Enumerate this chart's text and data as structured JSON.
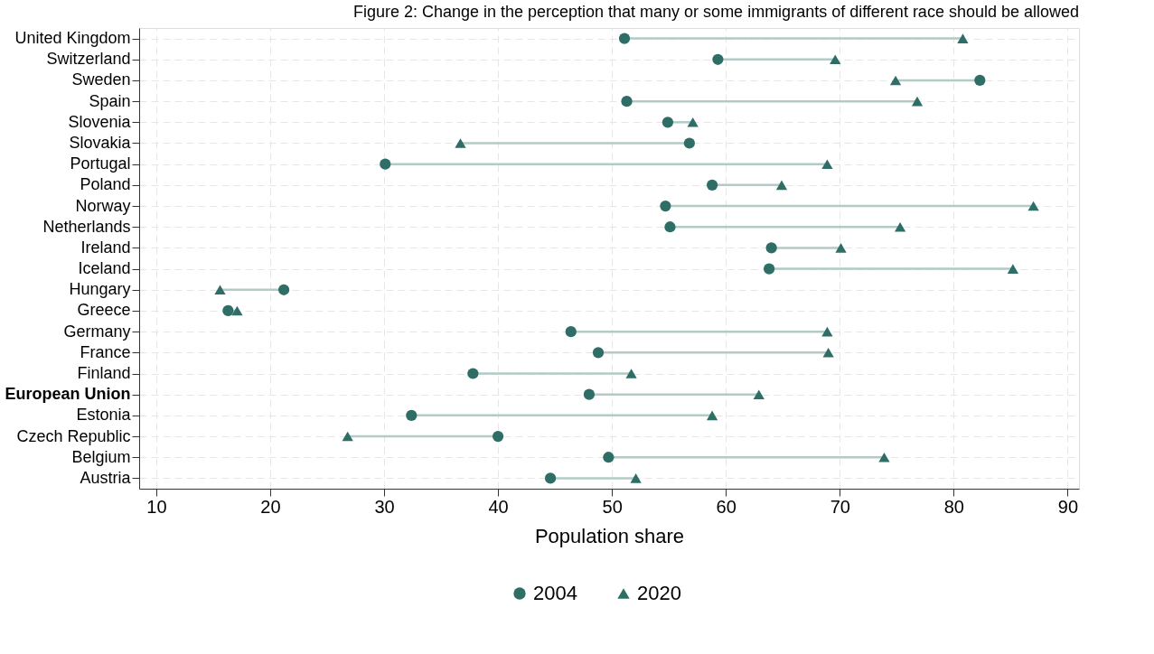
{
  "chart_data": {
    "type": "scatter",
    "title": "Figure 2: Change in the perception that many or some immigrants of different race should be allowed",
    "xlabel": "Population share",
    "categories": [
      "United Kingdom",
      "Switzerland",
      "Sweden",
      "Spain",
      "Slovenia",
      "Slovakia",
      "Portugal",
      "Poland",
      "Norway",
      "Netherlands",
      "Ireland",
      "Iceland",
      "Hungary",
      "Greece",
      "Germany",
      "France",
      "Finland",
      "European Union",
      "Estonia",
      "Czech Republic",
      "Belgium",
      "Austria"
    ],
    "series": [
      {
        "name": "2004",
        "color": "#2e6e67",
        "marker": "circle",
        "values": [
          51.1,
          59.3,
          82.3,
          51.3,
          54.9,
          56.8,
          30.1,
          58.8,
          54.7,
          55.1,
          64.0,
          63.8,
          21.2,
          16.3,
          46.4,
          48.8,
          37.8,
          48.0,
          32.4,
          40.0,
          49.7,
          44.6
        ]
      },
      {
        "name": "2020",
        "color": "#2e6e67",
        "marker": "triangle",
        "values": [
          80.8,
          69.6,
          74.9,
          76.8,
          57.1,
          36.7,
          68.9,
          64.9,
          87.0,
          75.3,
          70.1,
          85.2,
          15.6,
          17.1,
          68.9,
          69.0,
          51.7,
          62.9,
          58.8,
          26.8,
          73.9,
          52.1
        ]
      }
    ],
    "orientation": "horizontal",
    "xlim": [
      8.5,
      91
    ],
    "xticks": [
      10,
      20,
      30,
      40,
      50,
      60,
      70,
      80,
      90
    ],
    "grid": true,
    "legend": "bottom"
  }
}
